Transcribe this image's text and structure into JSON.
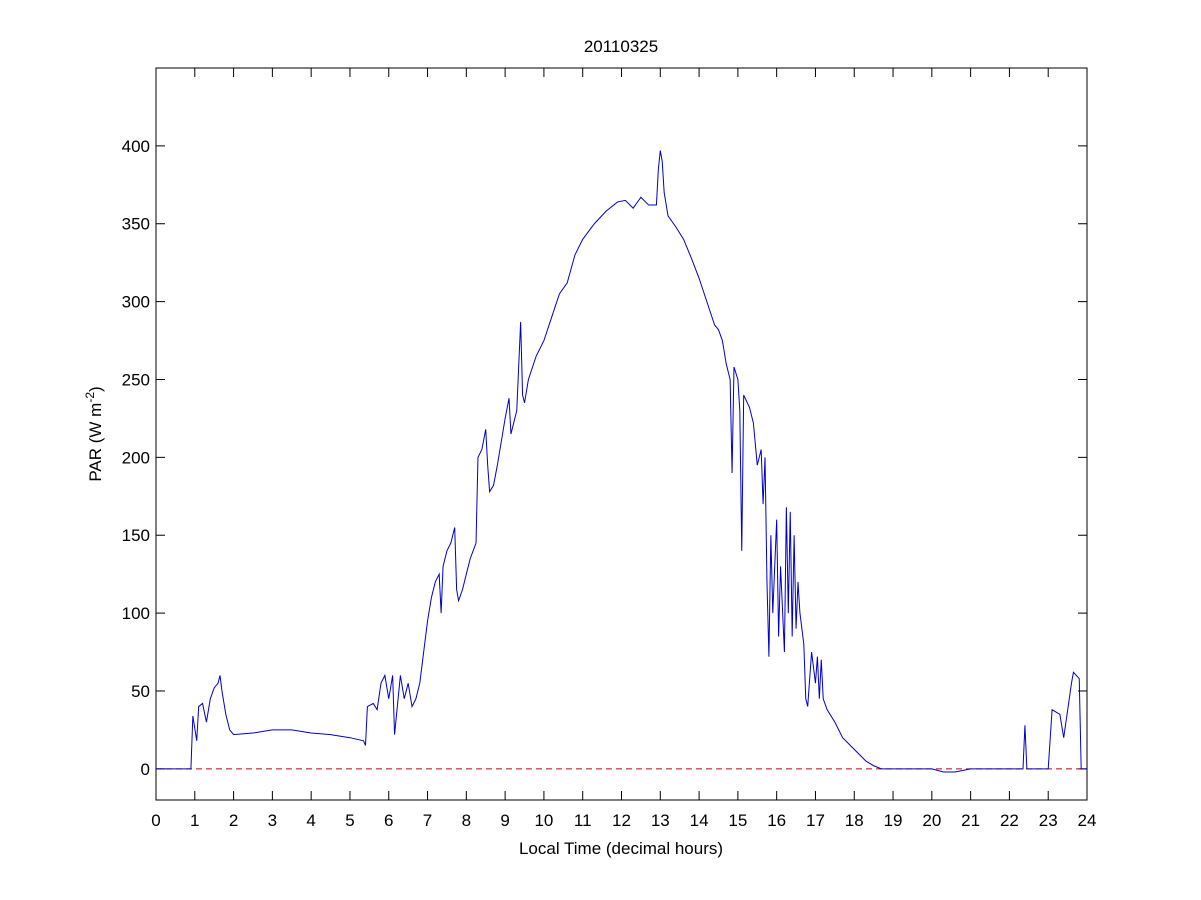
{
  "chart_data": {
    "type": "line",
    "title": "20110325",
    "xlabel": "Local Time (decimal hours)",
    "ylabel": {
      "text": "PAR (W m",
      "superscript": "-2",
      "suffix": ")"
    },
    "xlim": [
      0,
      24
    ],
    "ylim": [
      -20,
      450
    ],
    "xticks": [
      0,
      1,
      2,
      3,
      4,
      5,
      6,
      7,
      8,
      9,
      10,
      11,
      12,
      13,
      14,
      15,
      16,
      17,
      18,
      19,
      20,
      21,
      22,
      23,
      24
    ],
    "yticks": [
      0,
      50,
      100,
      150,
      200,
      250,
      300,
      350,
      400
    ],
    "reference_line": {
      "value": 0,
      "color": "#cc0000",
      "dashed": true
    },
    "series": [
      {
        "color": "#0000cc",
        "x": [
          0,
          0.9,
          0.95,
          1.05,
          1.1,
          1.2,
          1.3,
          1.4,
          1.5,
          1.6,
          1.65,
          1.7,
          1.8,
          1.9,
          2.0,
          2.5,
          3.0,
          3.5,
          4.0,
          4.5,
          5.0,
          5.35,
          5.4,
          5.45,
          5.6,
          5.7,
          5.8,
          5.9,
          6.0,
          6.1,
          6.15,
          6.3,
          6.4,
          6.5,
          6.6,
          6.7,
          6.8,
          6.9,
          7.0,
          7.1,
          7.2,
          7.3,
          7.35,
          7.4,
          7.5,
          7.6,
          7.7,
          7.75,
          7.8,
          7.9,
          8.0,
          8.1,
          8.25,
          8.3,
          8.4,
          8.5,
          8.55,
          8.6,
          8.7,
          8.8,
          8.9,
          9.0,
          9.1,
          9.15,
          9.3,
          9.4,
          9.45,
          9.5,
          9.6,
          9.8,
          10,
          10.2,
          10.4,
          10.6,
          10.8,
          11,
          11.3,
          11.6,
          11.9,
          12.1,
          12.3,
          12.5,
          12.7,
          12.9,
          12.95,
          13.0,
          13.05,
          13.1,
          13.2,
          13.4,
          13.6,
          13.8,
          14.0,
          14.2,
          14.4,
          14.5,
          14.6,
          14.7,
          14.8,
          14.85,
          14.9,
          15.0,
          15.05,
          15.1,
          15.15,
          15.3,
          15.4,
          15.5,
          15.6,
          15.65,
          15.7,
          15.75,
          15.8,
          15.85,
          15.9,
          16.0,
          16.05,
          16.1,
          16.2,
          16.25,
          16.3,
          16.35,
          16.4,
          16.45,
          16.5,
          16.55,
          16.6,
          16.7,
          16.75,
          16.8,
          16.9,
          17.0,
          17.05,
          17.1,
          17.15,
          17.2,
          17.3,
          17.5,
          17.7,
          17.9,
          18.1,
          18.3,
          18.5,
          18.7,
          19,
          20,
          20.3,
          20.6,
          21,
          22,
          22.35,
          22.4,
          22.45,
          23.0,
          23.1,
          23.3,
          23.4,
          23.6,
          23.65,
          23.8,
          23.85,
          24
        ],
        "values": [
          0,
          0,
          34,
          18,
          40,
          42,
          30,
          45,
          52,
          55,
          60,
          50,
          35,
          25,
          22,
          23,
          25,
          25,
          23,
          22,
          20,
          18,
          15,
          40,
          42,
          38,
          55,
          60,
          45,
          60,
          22,
          60,
          45,
          55,
          40,
          45,
          55,
          75,
          95,
          110,
          120,
          125,
          100,
          130,
          140,
          145,
          155,
          115,
          108,
          115,
          125,
          135,
          145,
          200,
          205,
          218,
          195,
          178,
          182,
          195,
          210,
          225,
          238,
          215,
          230,
          287,
          240,
          235,
          250,
          265,
          275,
          290,
          305,
          312,
          330,
          340,
          350,
          358,
          364,
          365,
          360,
          367,
          362,
          362,
          385,
          397,
          390,
          370,
          355,
          348,
          340,
          328,
          315,
          300,
          285,
          282,
          275,
          260,
          250,
          190,
          258,
          250,
          230,
          140,
          240,
          232,
          222,
          195,
          205,
          170,
          200,
          120,
          72,
          150,
          100,
          160,
          85,
          130,
          75,
          168,
          100,
          165,
          85,
          150,
          90,
          120,
          100,
          80,
          45,
          40,
          75,
          55,
          72,
          45,
          70,
          45,
          38,
          30,
          20,
          15,
          10,
          5,
          2,
          0,
          0,
          0,
          -2,
          -2,
          0,
          0,
          0,
          28,
          0,
          0,
          38,
          35,
          20,
          55,
          62,
          58,
          0,
          0
        ]
      }
    ]
  }
}
